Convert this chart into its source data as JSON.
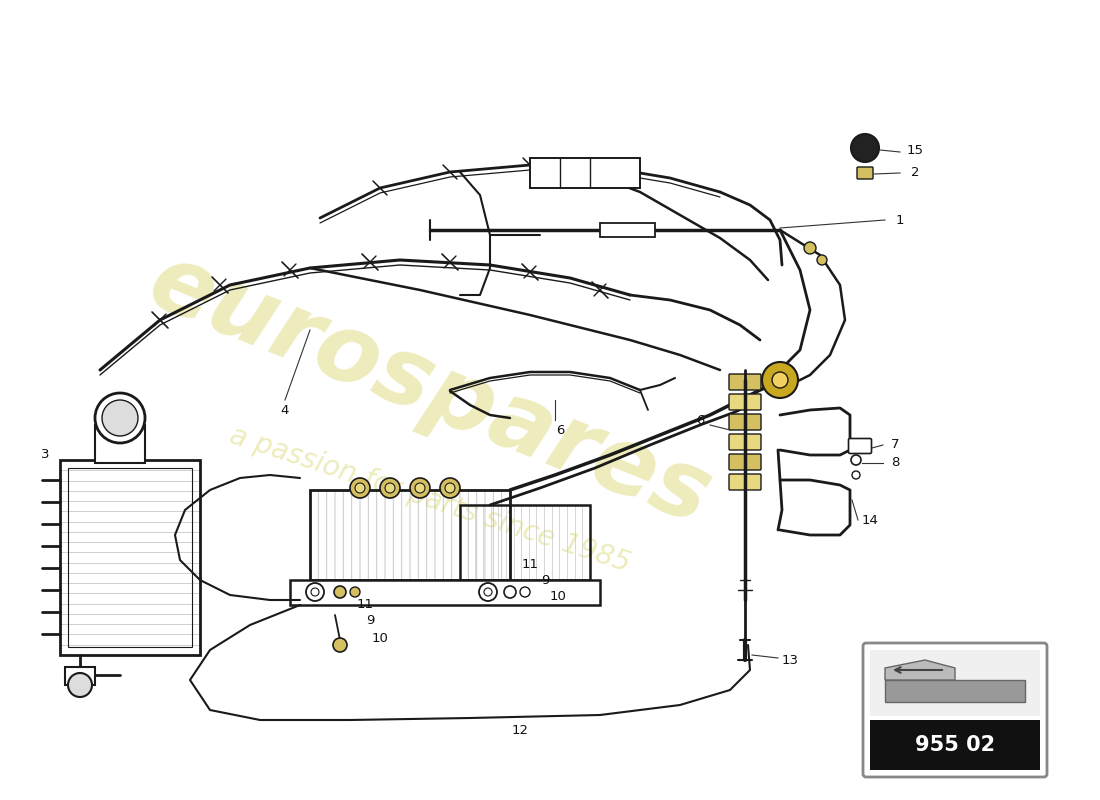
{
  "bg_color": "#ffffff",
  "line_color": "#1a1a1a",
  "watermark_text": "eurospares",
  "watermark_subtext": "a passion for parts since 1985",
  "watermark_color": "#c8c020",
  "watermark_alpha": 0.3,
  "part_number": "955 02",
  "label_fontsize": 9.5,
  "lw": 1.4
}
